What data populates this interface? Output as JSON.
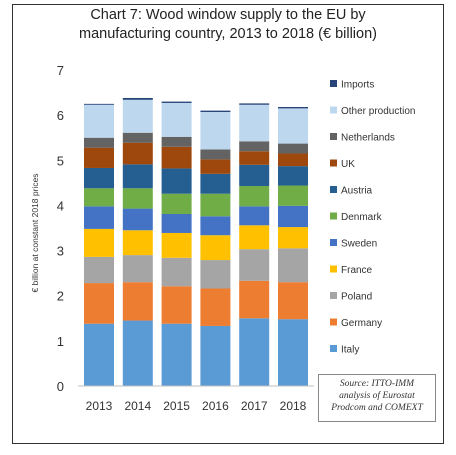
{
  "chart_data": {
    "type": "bar",
    "stacked": true,
    "title_lines": [
      "Chart 7: Wood window supply to the EU by",
      "manufacturing country, 2013 to 2018 (€ billion)"
    ],
    "ylabel": "€ billion at constant 2018 prices",
    "xlabel": "",
    "ylim": [
      0,
      7
    ],
    "yticks": [
      "0",
      "1",
      "2",
      "3",
      "4",
      "5",
      "6",
      "7"
    ],
    "categories": [
      "2013",
      "2014",
      "2015",
      "2016",
      "2017",
      "2018"
    ],
    "legend_position": "right",
    "grid": false,
    "series": [
      {
        "name": "Italy",
        "color": "#5b9bd5",
        "values": [
          1.38,
          1.45,
          1.38,
          1.33,
          1.5,
          1.48
        ]
      },
      {
        "name": "Germany",
        "color": "#ed7d31",
        "values": [
          0.9,
          0.85,
          0.83,
          0.83,
          0.83,
          0.82
        ]
      },
      {
        "name": "Poland",
        "color": "#a5a5a5",
        "values": [
          0.58,
          0.6,
          0.63,
          0.63,
          0.7,
          0.75
        ]
      },
      {
        "name": "France",
        "color": "#ffc000",
        "values": [
          0.62,
          0.55,
          0.55,
          0.55,
          0.53,
          0.47
        ]
      },
      {
        "name": "Sweden",
        "color": "#4472c4",
        "values": [
          0.5,
          0.48,
          0.42,
          0.42,
          0.42,
          0.47
        ]
      },
      {
        "name": "Denmark",
        "color": "#70ad47",
        "values": [
          0.4,
          0.45,
          0.45,
          0.5,
          0.45,
          0.45
        ]
      },
      {
        "name": "Austria",
        "color": "#255e91",
        "values": [
          0.45,
          0.53,
          0.56,
          0.44,
          0.47,
          0.43
        ]
      },
      {
        "name": "UK",
        "color": "#9e480e",
        "values": [
          0.45,
          0.48,
          0.48,
          0.32,
          0.3,
          0.28
        ]
      },
      {
        "name": "Netherlands",
        "color": "#636363",
        "values": [
          0.22,
          0.22,
          0.22,
          0.22,
          0.22,
          0.22
        ]
      },
      {
        "name": "Other production",
        "color": "#bdd7ee",
        "values": [
          0.73,
          0.73,
          0.75,
          0.83,
          0.81,
          0.78
        ]
      },
      {
        "name": "Imports",
        "color": "#264478",
        "values": [
          0.02,
          0.04,
          0.03,
          0.03,
          0.03,
          0.03
        ]
      }
    ],
    "source_lines": [
      "Source: ITTO-IMM",
      "analysis of Eurostat",
      "Prodcom and COMEXT"
    ]
  }
}
